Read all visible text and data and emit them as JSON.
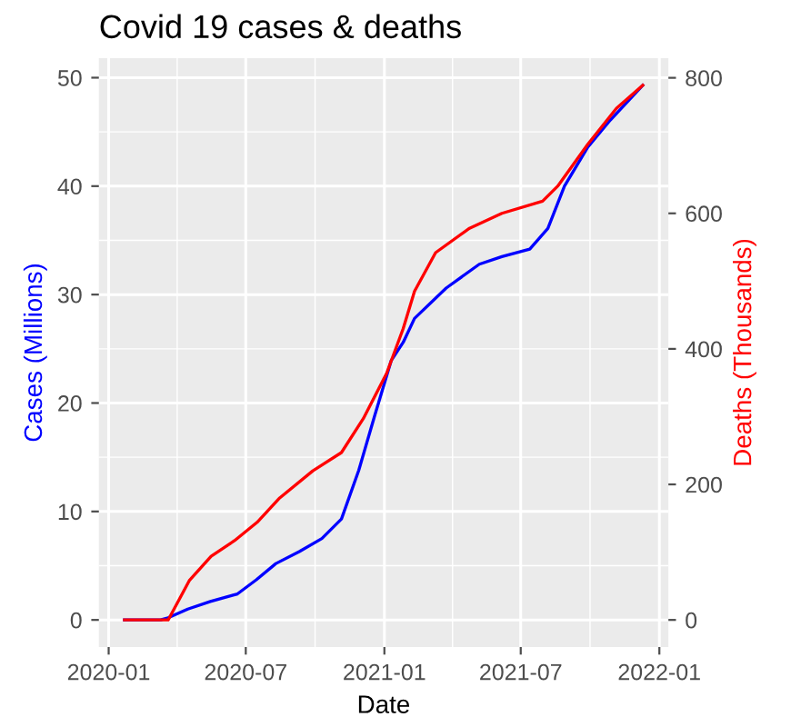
{
  "chart_data": {
    "type": "line",
    "title": "Covid 19 cases & deaths",
    "xlabel": "Date",
    "ylabel": "Cases (Millions)",
    "y2label": "Deaths (Thousands)",
    "xlim": [
      "2019-12-19",
      "2022-01-13"
    ],
    "xticks": [
      {
        "value": "2020-01-01",
        "label": "2020-01"
      },
      {
        "value": "2020-07-01",
        "label": "2020-07"
      },
      {
        "value": "2021-01-01",
        "label": "2021-01"
      },
      {
        "value": "2021-07-01",
        "label": "2021-07"
      },
      {
        "value": "2022-01-01",
        "label": "2022-01"
      }
    ],
    "ylim": [
      -2.5,
      51.8
    ],
    "yticks": [
      0,
      10,
      20,
      30,
      40,
      50
    ],
    "y2lim": [
      -40,
      829
    ],
    "y2ticks": [
      0,
      200,
      400,
      600,
      800
    ],
    "grid": true,
    "legend": false,
    "series": [
      {
        "color": "#0000ff",
        "x": [
          "2020-01-22",
          "2020-03-10",
          "2020-03-20",
          "2020-04-15",
          "2020-05-15",
          "2020-06-20",
          "2020-07-15",
          "2020-08-10",
          "2020-09-10",
          "2020-10-10",
          "2020-11-05",
          "2020-11-28",
          "2020-12-19",
          "2021-01-10",
          "2021-01-26",
          "2021-02-10",
          "2021-03-24",
          "2021-05-07",
          "2021-06-06",
          "2021-07-13",
          "2021-08-06",
          "2021-08-28",
          "2021-09-28",
          "2021-10-28",
          "2021-12-10"
        ],
        "values": [
          0,
          0,
          0.2,
          1.0,
          1.7,
          2.4,
          3.7,
          5.2,
          6.3,
          7.5,
          9.3,
          13.8,
          18.8,
          23.9,
          25.6,
          27.8,
          30.6,
          32.8,
          33.5,
          34.2,
          36.1,
          40,
          43.6,
          46.1,
          49.3
        ]
      },
      {
        "color": "#ff0000",
        "axis": "y2",
        "x": [
          "2020-01-22",
          "2020-03-20",
          "2020-04-17",
          "2020-05-16",
          "2020-06-16",
          "2020-07-16",
          "2020-08-15",
          "2020-09-28",
          "2020-11-05",
          "2020-12-04",
          "2021-01-04",
          "2021-01-26",
          "2021-02-10",
          "2021-03-10",
          "2021-04-24",
          "2021-06-06",
          "2021-07-30",
          "2021-08-19",
          "2021-09-28",
          "2021-11-05",
          "2021-12-10"
        ],
        "values": [
          0,
          0,
          58,
          94,
          117,
          144,
          180,
          220,
          247,
          297,
          364,
          430,
          485,
          542,
          578,
          600,
          618,
          640,
          702,
          755,
          789
        ]
      }
    ]
  }
}
